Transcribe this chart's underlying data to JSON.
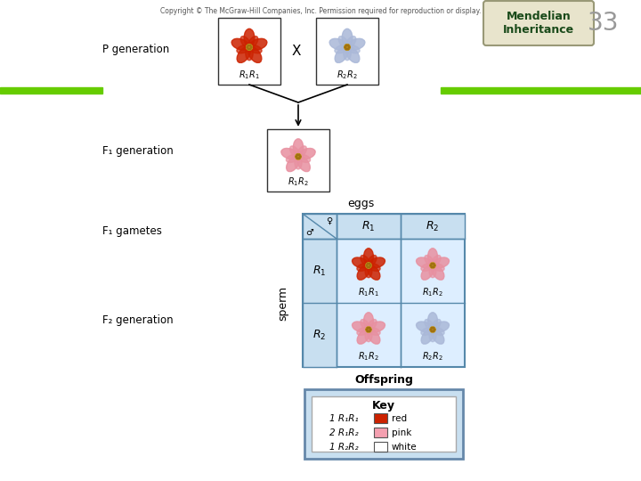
{
  "title": "Mendelian\nInheritance",
  "slide_number": "33",
  "copyright": "Copyright © The McGraw-Hill Companies, Inc. Permission required for reproduction or display.",
  "p_generation_label": "P generation",
  "f1_generation_label": "F₁ generation",
  "f1_gametes_label": "F₁ gametes",
  "f2_generation_label": "F₂ generation",
  "x_label": "X",
  "eggs_label": "eggs",
  "sperm_label": "sperm",
  "offspring_label": "Offspring",
  "key_title": "Key",
  "key_entries": [
    {
      "label": "1 R₁R₁",
      "color": "#cc2200",
      "desc": "red"
    },
    {
      "label": "2 R₁R₂",
      "color": "#f4a0b0",
      "desc": "pink"
    },
    {
      "label": "1 R₂R₂",
      "color": "#ffffff",
      "desc": "white"
    }
  ],
  "genotype_R1R1": "$R_1R_1$",
  "genotype_R2R2": "$R_2R_2$",
  "genotype_R1R2": "$R_1R_2$",
  "gamete_R1": "$R_1$",
  "gamete_R2": "$R_2$",
  "background_color": "#ffffff",
  "title_box_color": "#e8e4cc",
  "title_text_color": "#1a4a1a",
  "table_header_color": "#c8dff0",
  "table_cell_color": "#ddeeff",
  "table_border_color": "#5588aa",
  "key_border_color": "#6688aa",
  "green_bar_color": "#66cc00",
  "p_flower_left_color": "#cc2200",
  "p_flower_right_color": "#aab8d8",
  "f1_flower_color": "#e890a0",
  "cell_r1r1_color": "#cc2200",
  "cell_r1r2_color": "#e890a0",
  "cell_r2r2_color": "#aab8d8"
}
